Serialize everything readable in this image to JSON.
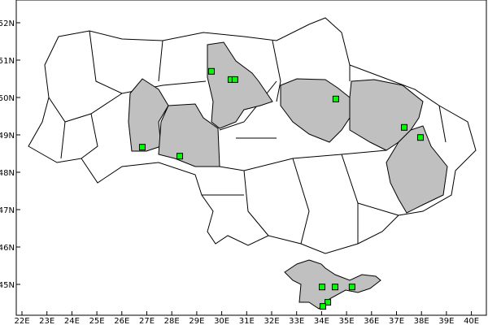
{
  "map": {
    "lon_range": [
      22,
      40
    ],
    "lat_range": [
      44,
      52
    ],
    "x_ticks": [
      "22E",
      "23E",
      "24E",
      "25E",
      "26E",
      "27E",
      "28E",
      "29E",
      "30E",
      "31E",
      "32E",
      "33E",
      "34E",
      "35E",
      "36E",
      "37E",
      "38E",
      "39E",
      "40E"
    ],
    "y_ticks": [
      "45N",
      "46N",
      "47N",
      "48N",
      "49N",
      "50N",
      "51N",
      "52N"
    ],
    "highlight_color": "#c0c0c0",
    "marker_color": "#00ff00",
    "highlighted_regions": [
      "khmelnytskyi",
      "vinnytsia",
      "zhytomyr",
      "poltava",
      "kharkiv",
      "donetsk",
      "crimea"
    ],
    "markers": [
      {
        "lon": 29.59,
        "lat": 50.7
      },
      {
        "lon": 30.37,
        "lat": 50.48
      },
      {
        "lon": 30.53,
        "lat": 50.48
      },
      {
        "lon": 34.57,
        "lat": 49.96
      },
      {
        "lon": 37.31,
        "lat": 49.2
      },
      {
        "lon": 37.96,
        "lat": 48.93
      },
      {
        "lon": 26.82,
        "lat": 48.67
      },
      {
        "lon": 28.32,
        "lat": 48.43
      },
      {
        "lon": 34.02,
        "lat": 44.93
      },
      {
        "lon": 34.54,
        "lat": 44.93
      },
      {
        "lon": 35.22,
        "lat": 44.93
      },
      {
        "lon": 34.25,
        "lat": 44.52
      },
      {
        "lon": 34.05,
        "lat": 44.41
      }
    ]
  }
}
